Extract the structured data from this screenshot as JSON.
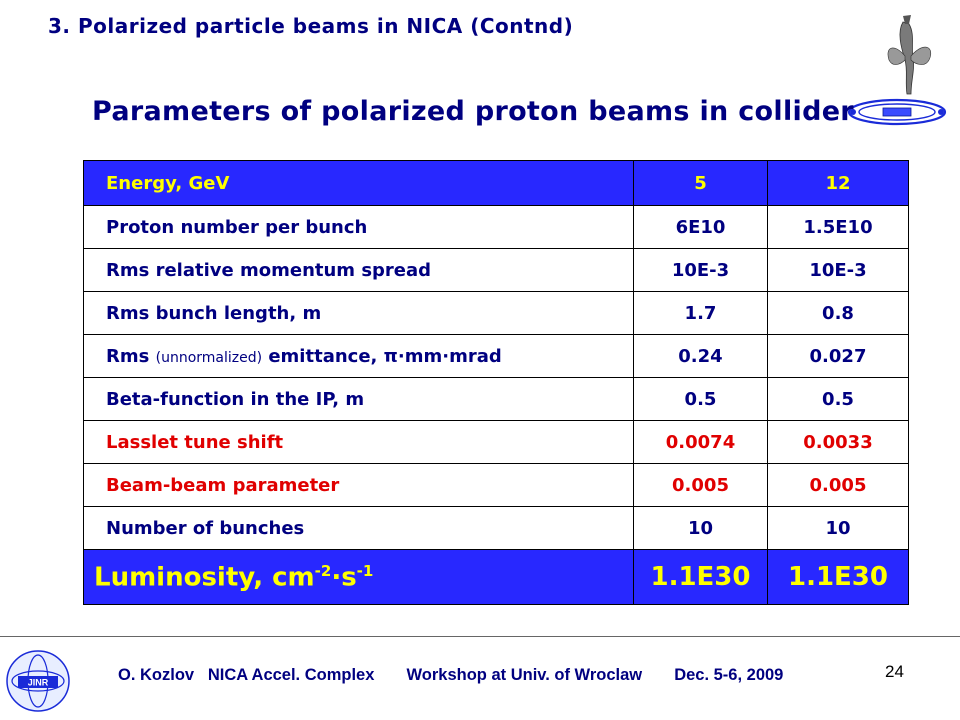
{
  "section_title": "3. Polarized particle beams in NICA (Contnd)",
  "slide_title": "Parameters of polarized proton beams in collider",
  "table": {
    "header": {
      "label": "Energy,  GeV",
      "v1": "5",
      "v2": "12"
    },
    "rows": [
      {
        "label_parts": [
          "Proton number per bunch"
        ],
        "v1": "6E10",
        "v2": "1.5E10",
        "style": "normal"
      },
      {
        "label_parts": [
          "Rms relative momentum spread"
        ],
        "v1": "10E-3",
        "v2": "10E-3",
        "style": "normal"
      },
      {
        "label_parts": [
          "Rms bunch length, m"
        ],
        "v1": "1.7",
        "v2": "0.8",
        "style": "normal"
      },
      {
        "label_parts": [
          "Rms ",
          "(unnormalized)",
          " emittance, ",
          "π·mm·mrad"
        ],
        "v1": "0.24",
        "v2": "0.027",
        "style": "normal"
      },
      {
        "label_parts": [
          "Beta-function in the IP, m"
        ],
        "v1": "0.5",
        "v2": "0.5",
        "style": "normal"
      },
      {
        "label_parts": [
          "Lasslet tune shift"
        ],
        "v1": "0.0074",
        "v2": "0.0033",
        "style": "red"
      },
      {
        "label_parts": [
          "Beam-beam parameter"
        ],
        "v1": "0.005",
        "v2": "0.005",
        "style": "red"
      },
      {
        "label_parts": [
          "Number of bunches"
        ],
        "v1": "10",
        "v2": "10",
        "style": "normal"
      }
    ],
    "luminosity": {
      "label": "Luminosity, cm",
      "exp1": "-2",
      "mid": "·s",
      "exp2": "-1",
      "v1": "1.1E30",
      "v2": "1.1E30"
    }
  },
  "footer": {
    "text": "O. Kozlov   NICA Accel. Complex       Workshop at Univ. of Wroclaw       Dec. 5-6, 2009",
    "page_number": "24",
    "logo_text": "JINR"
  },
  "colors": {
    "title": "#000080",
    "header_bg": "#2828ff",
    "header_text": "#ffff00",
    "red_rows": "#e00000"
  },
  "icons": {
    "top_right_logo": "nica-logo-icon",
    "footer_logo": "jinr-logo-icon"
  }
}
